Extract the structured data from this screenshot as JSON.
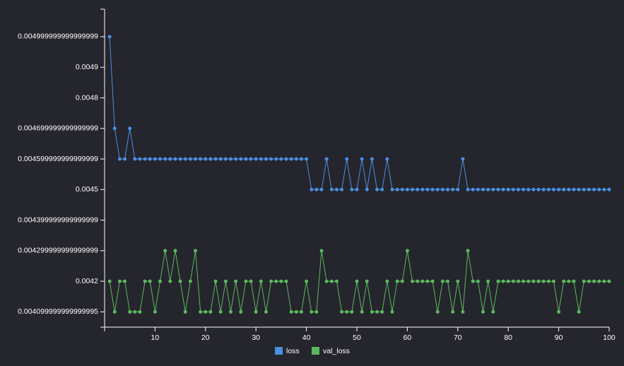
{
  "chart_data": {
    "type": "line",
    "title": "",
    "xlabel": "",
    "ylabel": "",
    "grid": false,
    "legend_position": "bottom",
    "xlim": [
      0,
      100
    ],
    "ylim": [
      0.00405,
      0.00509
    ],
    "x_ticks": [
      10,
      20,
      30,
      40,
      50,
      60,
      70,
      80,
      90,
      100
    ],
    "y_ticks": [
      {
        "value": 0.005,
        "label": "0.004999999999999999"
      },
      {
        "value": 0.0049,
        "label": "0.0049"
      },
      {
        "value": 0.0048,
        "label": "0.0048"
      },
      {
        "value": 0.0047,
        "label": "0.004699999999999999"
      },
      {
        "value": 0.0046,
        "label": "0.004599999999999999"
      },
      {
        "value": 0.0045,
        "label": "0.0045"
      },
      {
        "value": 0.0044,
        "label": "0.004399999999999999"
      },
      {
        "value": 0.0043,
        "label": "0.004299999999999999"
      },
      {
        "value": 0.0042,
        "label": "0.0042"
      },
      {
        "value": 0.0041,
        "label": "0.004099999999999995"
      }
    ],
    "x": [
      1,
      2,
      3,
      4,
      5,
      6,
      7,
      8,
      9,
      10,
      11,
      12,
      13,
      14,
      15,
      16,
      17,
      18,
      19,
      20,
      21,
      22,
      23,
      24,
      25,
      26,
      27,
      28,
      29,
      30,
      31,
      32,
      33,
      34,
      35,
      36,
      37,
      38,
      39,
      40,
      41,
      42,
      43,
      44,
      45,
      46,
      47,
      48,
      49,
      50,
      51,
      52,
      53,
      54,
      55,
      56,
      57,
      58,
      59,
      60,
      61,
      62,
      63,
      64,
      65,
      66,
      67,
      68,
      69,
      70,
      71,
      72,
      73,
      74,
      75,
      76,
      77,
      78,
      79,
      80,
      81,
      82,
      83,
      84,
      85,
      86,
      87,
      88,
      89,
      90,
      91,
      92,
      93,
      94,
      95,
      96,
      97,
      98,
      99,
      100
    ],
    "series": [
      {
        "name": "loss",
        "color": "#4a90e2",
        "values": [
          0.005,
          0.0047,
          0.0046,
          0.0046,
          0.0047,
          0.0046,
          0.0046,
          0.0046,
          0.0046,
          0.0046,
          0.0046,
          0.0046,
          0.0046,
          0.0046,
          0.0046,
          0.0046,
          0.0046,
          0.0046,
          0.0046,
          0.0046,
          0.0046,
          0.0046,
          0.0046,
          0.0046,
          0.0046,
          0.0046,
          0.0046,
          0.0046,
          0.0046,
          0.0046,
          0.0046,
          0.0046,
          0.0046,
          0.0046,
          0.0046,
          0.0046,
          0.0046,
          0.0046,
          0.0046,
          0.0046,
          0.0045,
          0.0045,
          0.0045,
          0.0046,
          0.0045,
          0.0045,
          0.0045,
          0.0046,
          0.0045,
          0.0045,
          0.0046,
          0.0045,
          0.0046,
          0.0045,
          0.0045,
          0.0046,
          0.0045,
          0.0045,
          0.0045,
          0.0045,
          0.0045,
          0.0045,
          0.0045,
          0.0045,
          0.0045,
          0.0045,
          0.0045,
          0.0045,
          0.0045,
          0.0045,
          0.0046,
          0.0045,
          0.0045,
          0.0045,
          0.0045,
          0.0045,
          0.0045,
          0.0045,
          0.0045,
          0.0045,
          0.0045,
          0.0045,
          0.0045,
          0.0045,
          0.0045,
          0.0045,
          0.0045,
          0.0045,
          0.0045,
          0.0045,
          0.0045,
          0.0045,
          0.0045,
          0.0045,
          0.0045,
          0.0045,
          0.0045,
          0.0045,
          0.0045,
          0.0045
        ]
      },
      {
        "name": "val_loss",
        "color": "#5cb85c",
        "values": [
          0.0042,
          0.0041,
          0.0042,
          0.0042,
          0.0041,
          0.0041,
          0.0041,
          0.0042,
          0.0042,
          0.0041,
          0.0042,
          0.0043,
          0.0042,
          0.0043,
          0.0042,
          0.0041,
          0.0042,
          0.0043,
          0.0041,
          0.0041,
          0.0041,
          0.0042,
          0.0041,
          0.0042,
          0.0041,
          0.0042,
          0.0041,
          0.0042,
          0.0042,
          0.0041,
          0.0042,
          0.0041,
          0.0042,
          0.0042,
          0.0042,
          0.0042,
          0.0041,
          0.0041,
          0.0041,
          0.0042,
          0.0041,
          0.0041,
          0.0043,
          0.0042,
          0.0042,
          0.0042,
          0.0041,
          0.0041,
          0.0041,
          0.0042,
          0.0041,
          0.0042,
          0.0041,
          0.0041,
          0.0041,
          0.0042,
          0.0041,
          0.0042,
          0.0042,
          0.0043,
          0.0042,
          0.0042,
          0.0042,
          0.0042,
          0.0042,
          0.0041,
          0.0042,
          0.0042,
          0.0041,
          0.0042,
          0.0041,
          0.0043,
          0.0042,
          0.0042,
          0.0041,
          0.0042,
          0.0041,
          0.0042,
          0.0042,
          0.0042,
          0.0042,
          0.0042,
          0.0042,
          0.0042,
          0.0042,
          0.0042,
          0.0042,
          0.0042,
          0.0042,
          0.0041,
          0.0042,
          0.0042,
          0.0042,
          0.0041,
          0.0042,
          0.0042,
          0.0042,
          0.0042,
          0.0042,
          0.0042
        ]
      }
    ]
  }
}
